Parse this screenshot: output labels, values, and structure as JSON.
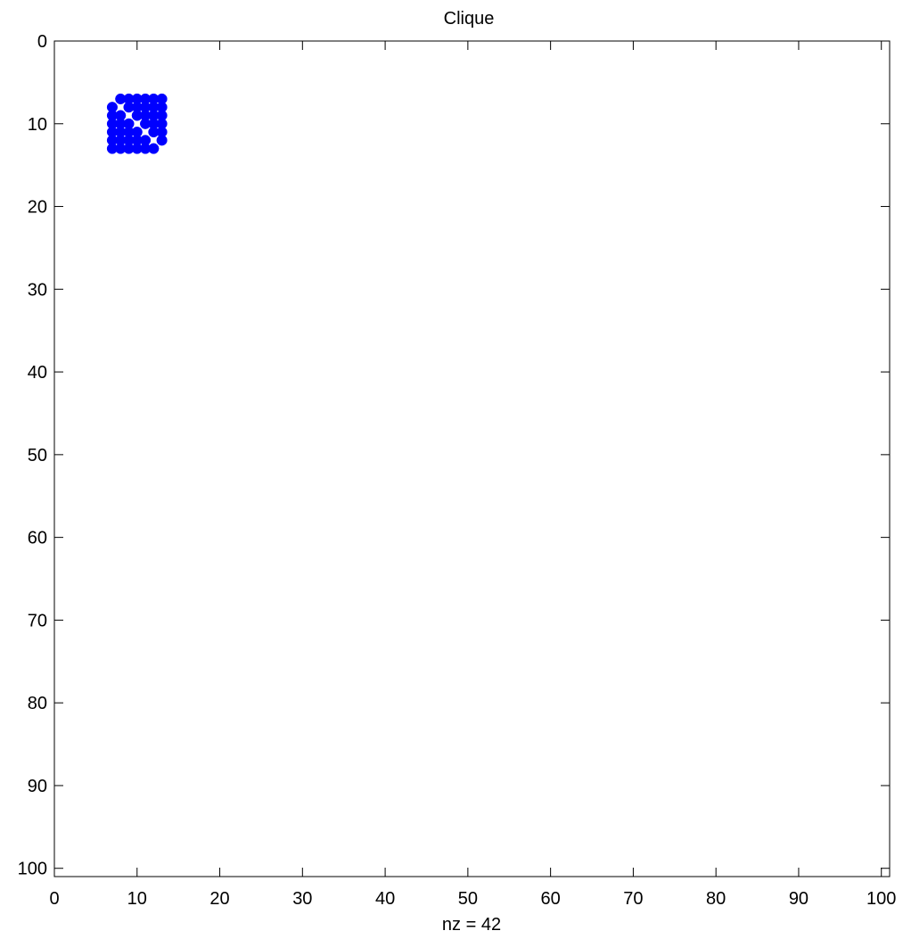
{
  "chart_data": {
    "type": "scatter",
    "title": "Clique",
    "xlabel": "nz = 42",
    "ylabel": "",
    "xlim": [
      0,
      101
    ],
    "ylim": [
      0,
      101
    ],
    "y_axis_reversed": true,
    "grid": false,
    "legend": "none",
    "marker_color": "#0000ff",
    "x_ticks": [
      0,
      10,
      20,
      30,
      40,
      50,
      60,
      70,
      80,
      90,
      100
    ],
    "y_ticks": [
      0,
      10,
      20,
      30,
      40,
      50,
      60,
      70,
      80,
      90,
      100
    ],
    "x_tick_labels": [
      "0",
      "10",
      "20",
      "30",
      "40",
      "50",
      "60",
      "70",
      "80",
      "90",
      "100"
    ],
    "y_tick_labels": [
      "0",
      "10",
      "20",
      "30",
      "40",
      "50",
      "60",
      "70",
      "80",
      "90",
      "100"
    ],
    "points": [
      [
        8,
        7
      ],
      [
        9,
        7
      ],
      [
        10,
        7
      ],
      [
        11,
        7
      ],
      [
        12,
        7
      ],
      [
        13,
        7
      ],
      [
        7,
        8
      ],
      [
        9,
        8
      ],
      [
        10,
        8
      ],
      [
        11,
        8
      ],
      [
        12,
        8
      ],
      [
        13,
        8
      ],
      [
        7,
        9
      ],
      [
        8,
        9
      ],
      [
        10,
        9
      ],
      [
        11,
        9
      ],
      [
        12,
        9
      ],
      [
        13,
        9
      ],
      [
        7,
        10
      ],
      [
        8,
        10
      ],
      [
        9,
        10
      ],
      [
        11,
        10
      ],
      [
        12,
        10
      ],
      [
        13,
        10
      ],
      [
        7,
        11
      ],
      [
        8,
        11
      ],
      [
        9,
        11
      ],
      [
        10,
        11
      ],
      [
        12,
        11
      ],
      [
        13,
        11
      ],
      [
        7,
        12
      ],
      [
        8,
        12
      ],
      [
        9,
        12
      ],
      [
        10,
        12
      ],
      [
        11,
        12
      ],
      [
        13,
        12
      ],
      [
        7,
        13
      ],
      [
        8,
        13
      ],
      [
        9,
        13
      ],
      [
        10,
        13
      ],
      [
        11,
        13
      ],
      [
        12,
        13
      ]
    ]
  }
}
